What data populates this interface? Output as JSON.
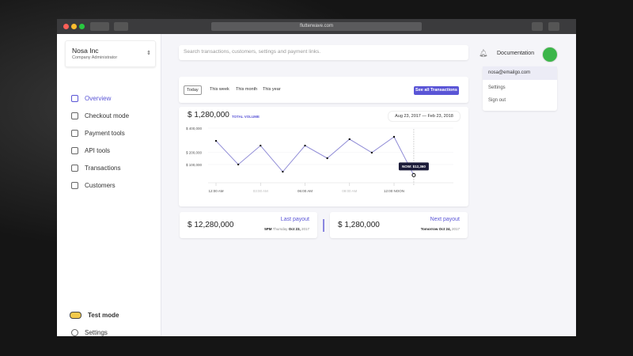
{
  "browser": {
    "url": "flutterwave.com"
  },
  "sidebar": {
    "company": "Nosa Inc",
    "role": "Company Administrator",
    "nav": [
      "Overview",
      "Checkout mode",
      "Payment tools",
      "API tools",
      "Transactions",
      "Customers"
    ],
    "test_mode": "Test mode",
    "settings": "Settings"
  },
  "search": {
    "placeholder": "Search transactions, customers, settings and payment links."
  },
  "header": {
    "documentation": "Documentation",
    "dropdown": {
      "email": "nosa@emailgo.com",
      "items": [
        "Settings",
        "Sign out"
      ]
    }
  },
  "filters": {
    "options": [
      "Today",
      "This week",
      "This month",
      "This year"
    ],
    "button": "See all Transactions"
  },
  "chart": {
    "type": "line",
    "total": "$ 1,280,000",
    "total_label": "TOTAL VOLUME",
    "date_from": "Aug 23, 2017",
    "date_to": "Feb 23, 2018",
    "x": [
      0,
      1.5,
      3,
      4.5,
      6,
      7.5,
      9,
      10.5,
      12,
      13.33
    ],
    "values": [
      295000,
      100000,
      256000,
      41000,
      256000,
      152000,
      309000,
      198000,
      328000,
      12360
    ],
    "value_labels": [
      null,
      null,
      null,
      null,
      null,
      null,
      null,
      null,
      null,
      "NOW: $12,360"
    ],
    "color": "#8f8bd6",
    "ylim": [
      0,
      450000
    ],
    "yticks": [
      {
        "value": 400000,
        "label": "$ 400,000"
      },
      {
        "value": 200000,
        "label": "$ 200,000"
      },
      {
        "value": 100000,
        "label": "$ 100,000"
      }
    ],
    "xlim": [
      -2,
      16
    ],
    "xticks": [
      {
        "value": 0,
        "label": "12:00 AM"
      },
      {
        "value": 3,
        "label": "03:00 AM"
      },
      {
        "value": 6,
        "label": "06:00 AM"
      },
      {
        "value": 9,
        "label": "09:00 AM"
      },
      {
        "value": 12,
        "label": "12:00 NOON"
      }
    ]
  },
  "payouts": [
    {
      "amount": "$ 12,280,000",
      "title": "Last payout",
      "time": "5PM",
      "day": "Thursday",
      "date": "Oct 23,",
      "year": "2017"
    },
    {
      "amount": "$ 1,280,000",
      "title": "Next payout",
      "time": "Tomorrow",
      "date": "Oct 24,",
      "year": "2017"
    }
  ]
}
